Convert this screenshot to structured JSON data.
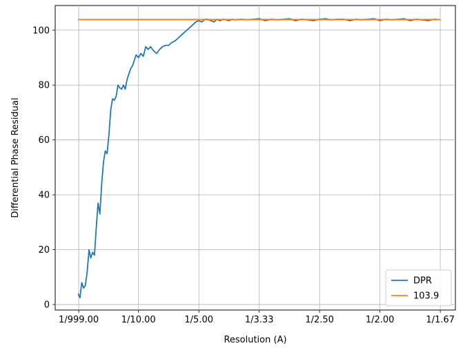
{
  "chart_data": {
    "type": "line",
    "xlabel": "Resolution (A)",
    "ylabel": "Differential Phase Residual",
    "xlim": [
      0.0,
      0.6
    ],
    "ylim": [
      -2,
      109
    ],
    "grid": true,
    "legend_position": "lower-right",
    "x_ticks": [
      {
        "value": 0.001,
        "label": "1/999.00"
      },
      {
        "value": 0.1,
        "label": "1/10.00"
      },
      {
        "value": 0.2,
        "label": "1/5.00"
      },
      {
        "value": 0.3,
        "label": "1/3.33"
      },
      {
        "value": 0.4,
        "label": "1/2.50"
      },
      {
        "value": 0.5,
        "label": "1/2.00"
      },
      {
        "value": 0.6,
        "label": "1/1.67"
      }
    ],
    "y_ticks": [
      0,
      20,
      40,
      60,
      80,
      100
    ],
    "series": [
      {
        "name": "DPR",
        "color": "#1f77b4",
        "x": [
          0.0,
          0.003,
          0.006,
          0.009,
          0.012,
          0.015,
          0.018,
          0.021,
          0.024,
          0.027,
          0.03,
          0.033,
          0.036,
          0.039,
          0.042,
          0.045,
          0.048,
          0.051,
          0.054,
          0.057,
          0.06,
          0.063,
          0.066,
          0.069,
          0.072,
          0.075,
          0.078,
          0.081,
          0.084,
          0.087,
          0.09,
          0.093,
          0.096,
          0.1,
          0.104,
          0.108,
          0.112,
          0.116,
          0.12,
          0.125,
          0.13,
          0.135,
          0.14,
          0.145,
          0.15,
          0.155,
          0.16,
          0.165,
          0.17,
          0.175,
          0.18,
          0.185,
          0.19,
          0.195,
          0.2,
          0.205,
          0.21,
          0.215,
          0.22,
          0.225,
          0.23,
          0.235,
          0.24,
          0.245,
          0.25,
          0.255,
          0.26,
          0.27,
          0.28,
          0.29,
          0.3,
          0.31,
          0.32,
          0.33,
          0.34,
          0.35,
          0.36,
          0.37,
          0.38,
          0.39,
          0.4,
          0.41,
          0.42,
          0.43,
          0.44,
          0.45,
          0.46,
          0.47,
          0.48,
          0.49,
          0.5,
          0.51,
          0.52,
          0.53,
          0.54,
          0.55,
          0.56,
          0.57,
          0.58,
          0.59,
          0.595
        ],
        "y": [
          4,
          2.5,
          8,
          6,
          7,
          12,
          20,
          17,
          19,
          18,
          28,
          37,
          33,
          44,
          52,
          56,
          55,
          62,
          71,
          75,
          74.5,
          76,
          80,
          79,
          78.5,
          80,
          78.5,
          82,
          84,
          86,
          87,
          89,
          91,
          90,
          91.5,
          90.5,
          94,
          93,
          94,
          92.5,
          91.5,
          93,
          94,
          94.5,
          94.5,
          95.5,
          96,
          97,
          98,
          99,
          100,
          101,
          102,
          103,
          103.5,
          103,
          104,
          104,
          103.5,
          103,
          104,
          103.5,
          104,
          103.8,
          103.5,
          104,
          103.8,
          104,
          103.8,
          104,
          104.2,
          103.5,
          104,
          103.8,
          104,
          104.2,
          103.5,
          104,
          103.8,
          103.5,
          104,
          104.2,
          103.8,
          104,
          104,
          103.5,
          104,
          103.8,
          104,
          104.2,
          103.5,
          104,
          103.8,
          104,
          104.2,
          103.5,
          104,
          103.8,
          103.5,
          104,
          103.9
        ]
      },
      {
        "name": "103.9",
        "color": "#ff7f0e",
        "x": [
          0.0,
          0.6
        ],
        "y": [
          103.9,
          103.9
        ]
      }
    ]
  }
}
